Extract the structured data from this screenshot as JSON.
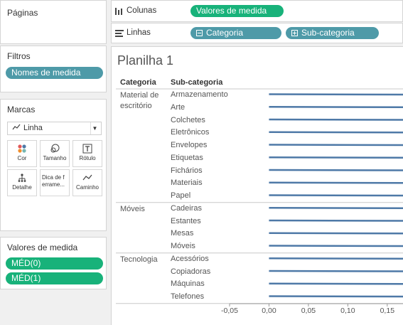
{
  "paginas_panel": {
    "title": "Páginas"
  },
  "filtros_panel": {
    "title": "Filtros",
    "pill": "Nomes de medida"
  },
  "marcas_panel": {
    "title": "Marcas",
    "mark_type": "Linha",
    "buttons": {
      "cor": "Cor",
      "tamanho": "Tamanho",
      "rotulo": "Rótulo",
      "detalhe": "Detalhe",
      "dica": "Dica de ferrame...",
      "caminho": "Caminho"
    }
  },
  "valores_panel": {
    "title": "Valores de medida",
    "pills": [
      "MÉD(0)",
      "MÉD(1)"
    ]
  },
  "shelves": {
    "colunas_label": "Colunas",
    "colunas_pill": "Valores de medida",
    "linhas_label": "Linhas",
    "linhas_pills": [
      "Categoria",
      "Sub-categoria"
    ]
  },
  "sheet": {
    "title": "Planilha 1",
    "header_categoria": "Categoria",
    "header_subcategoria": "Sub-categoria"
  },
  "colors": {
    "teal_pill": "#4e9aa8",
    "green_pill": "#18b27a",
    "line_color": "#4e79a7"
  },
  "chart_data": {
    "type": "line",
    "groups": [
      {
        "categoria": "Material de escritório",
        "subcategorias": [
          "Armazenamento",
          "Arte",
          "Colchetes",
          "Eletrônicos",
          "Envelopes",
          "Etiquetas",
          "Fichários",
          "Materiais",
          "Papel"
        ]
      },
      {
        "categoria": "Móveis",
        "subcategorias": [
          "Cadeiras",
          "Estantes",
          "Mesas",
          "Móveis"
        ]
      },
      {
        "categoria": "Tecnologia",
        "subcategorias": [
          "Acessórios",
          "Copiadoras",
          "Máquinas",
          "Telefones"
        ]
      }
    ],
    "series": [
      {
        "name": "MÉD(0)",
        "value": 0
      },
      {
        "name": "MÉD(1)",
        "value": 1
      }
    ],
    "x_ticks": [
      "-0,05",
      "0,00",
      "0,05",
      "0,10",
      "0,15"
    ],
    "x_tick_values": [
      -0.05,
      0,
      0.05,
      0.1,
      0.15
    ],
    "xlim": [
      -0.05,
      0.17
    ]
  }
}
